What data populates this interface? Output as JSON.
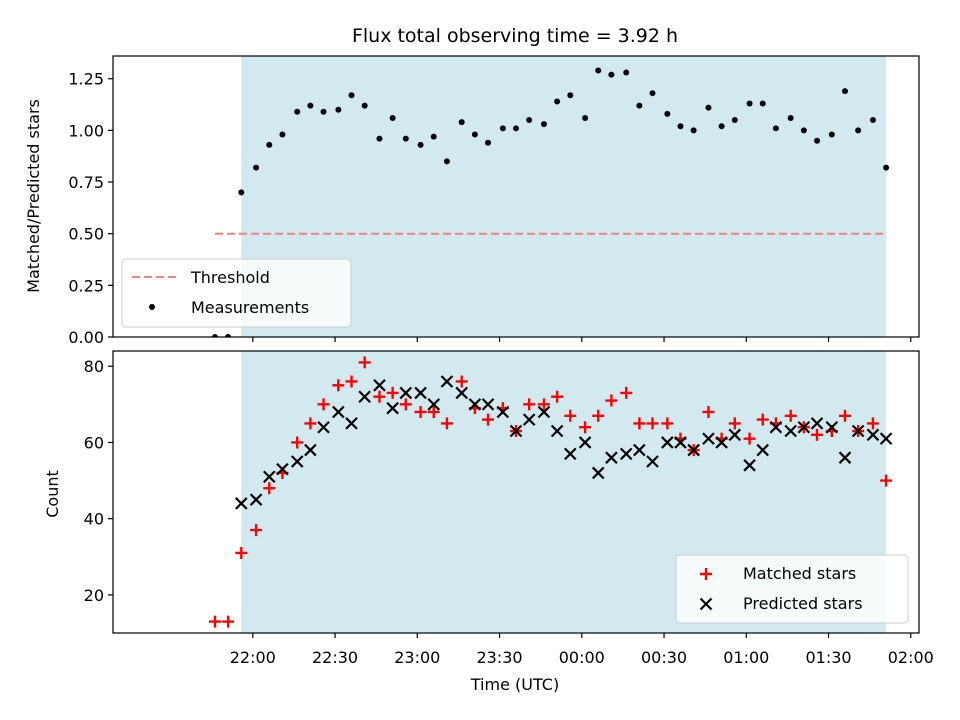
{
  "chart_data": [
    {
      "type": "scatter",
      "title": "Flux total observing time = 3.92 h",
      "xlabel": "",
      "ylabel": "Matched/Predicted stars",
      "x_unit": "hours since 22:00 UTC",
      "xlim": [
        -0.85,
        4.05
      ],
      "ylim": [
        0.0,
        1.36
      ],
      "yticks": [
        0.0,
        0.25,
        0.5,
        0.75,
        1.0,
        1.25
      ],
      "ytick_labels": [
        "0.00",
        "0.25",
        "0.50",
        "0.75",
        "1.00",
        "1.25"
      ],
      "xticks": [
        0,
        0.5,
        1,
        1.5,
        2,
        2.5,
        3,
        3.5,
        4
      ],
      "shaded_span": [
        -0.07,
        3.85
      ],
      "shaded_color": "#d3e9f0",
      "threshold": {
        "name": "Threshold",
        "y": 0.5,
        "x_range": [
          -0.23,
          3.85
        ],
        "color": "#f28080"
      },
      "legend": {
        "placement": "lower left",
        "entries": [
          "Threshold",
          "Measurements"
        ]
      },
      "series": [
        {
          "name": "Measurements",
          "color": "#000000",
          "points": [
            [
              -0.23,
              0.0
            ],
            [
              -0.15,
              0.0
            ],
            [
              -0.07,
              0.7
            ],
            [
              0.02,
              0.82
            ],
            [
              0.1,
              0.93
            ],
            [
              0.18,
              0.98
            ],
            [
              0.27,
              1.09
            ],
            [
              0.35,
              1.12
            ],
            [
              0.43,
              1.09
            ],
            [
              0.52,
              1.1
            ],
            [
              0.6,
              1.17
            ],
            [
              0.68,
              1.12
            ],
            [
              0.77,
              0.96
            ],
            [
              0.85,
              1.06
            ],
            [
              0.93,
              0.96
            ],
            [
              1.02,
              0.93
            ],
            [
              1.1,
              0.97
            ],
            [
              1.18,
              0.85
            ],
            [
              1.27,
              1.04
            ],
            [
              1.35,
              0.98
            ],
            [
              1.43,
              0.94
            ],
            [
              1.52,
              1.01
            ],
            [
              1.6,
              1.01
            ],
            [
              1.68,
              1.05
            ],
            [
              1.77,
              1.03
            ],
            [
              1.85,
              1.14
            ],
            [
              1.93,
              1.17
            ],
            [
              2.02,
              1.06
            ],
            [
              2.1,
              1.29
            ],
            [
              2.18,
              1.27
            ],
            [
              2.27,
              1.28
            ],
            [
              2.35,
              1.12
            ],
            [
              2.43,
              1.18
            ],
            [
              2.52,
              1.08
            ],
            [
              2.6,
              1.02
            ],
            [
              2.68,
              1.0
            ],
            [
              2.77,
              1.11
            ],
            [
              2.85,
              1.02
            ],
            [
              2.93,
              1.05
            ],
            [
              3.02,
              1.13
            ],
            [
              3.1,
              1.13
            ],
            [
              3.18,
              1.01
            ],
            [
              3.27,
              1.06
            ],
            [
              3.35,
              1.0
            ],
            [
              3.43,
              0.95
            ],
            [
              3.52,
              0.98
            ],
            [
              3.6,
              1.19
            ],
            [
              3.68,
              1.0
            ],
            [
              3.77,
              1.05
            ],
            [
              3.85,
              0.82
            ]
          ]
        }
      ]
    },
    {
      "type": "scatter",
      "title": "",
      "xlabel": "Time (UTC)",
      "ylabel": "Count",
      "x_unit": "hours since 22:00 UTC",
      "xlim": [
        -0.85,
        4.05
      ],
      "ylim": [
        10,
        84
      ],
      "yticks": [
        20,
        40,
        60,
        80
      ],
      "ytick_labels": [
        "20",
        "40",
        "60",
        "80"
      ],
      "xticks": [
        0,
        0.5,
        1,
        1.5,
        2,
        2.5,
        3,
        3.5,
        4
      ],
      "xtick_labels": [
        "22:00",
        "22:30",
        "23:00",
        "23:30",
        "00:00",
        "00:30",
        "01:00",
        "01:30",
        "02:00"
      ],
      "shaded_span": [
        -0.07,
        3.85
      ],
      "shaded_color": "#d3e9f0",
      "legend": {
        "placement": "lower right",
        "entries": [
          "Matched stars",
          "Predicted stars"
        ]
      },
      "series": [
        {
          "name": "Matched stars",
          "marker": "plus",
          "color": "#ff0000",
          "points": [
            [
              -0.23,
              13
            ],
            [
              -0.15,
              13
            ],
            [
              -0.07,
              31
            ],
            [
              0.02,
              37
            ],
            [
              0.1,
              48
            ],
            [
              0.18,
              52
            ],
            [
              0.27,
              60
            ],
            [
              0.35,
              65
            ],
            [
              0.43,
              70
            ],
            [
              0.52,
              75
            ],
            [
              0.6,
              76
            ],
            [
              0.68,
              81
            ],
            [
              0.77,
              72
            ],
            [
              0.85,
              73
            ],
            [
              0.93,
              70
            ],
            [
              1.02,
              68
            ],
            [
              1.1,
              68
            ],
            [
              1.18,
              65
            ],
            [
              1.27,
              76
            ],
            [
              1.35,
              69
            ],
            [
              1.43,
              66
            ],
            [
              1.52,
              69
            ],
            [
              1.6,
              63
            ],
            [
              1.68,
              70
            ],
            [
              1.77,
              70
            ],
            [
              1.85,
              72
            ],
            [
              1.93,
              67
            ],
            [
              2.02,
              64
            ],
            [
              2.1,
              67
            ],
            [
              2.18,
              71
            ],
            [
              2.27,
              73
            ],
            [
              2.35,
              65
            ],
            [
              2.43,
              65
            ],
            [
              2.52,
              65
            ],
            [
              2.6,
              61
            ],
            [
              2.68,
              58
            ],
            [
              2.77,
              68
            ],
            [
              2.85,
              61
            ],
            [
              2.93,
              65
            ],
            [
              3.02,
              61
            ],
            [
              3.1,
              66
            ],
            [
              3.18,
              65
            ],
            [
              3.27,
              67
            ],
            [
              3.35,
              64
            ],
            [
              3.43,
              62
            ],
            [
              3.52,
              63
            ],
            [
              3.6,
              67
            ],
            [
              3.68,
              63
            ],
            [
              3.77,
              65
            ],
            [
              3.85,
              50
            ]
          ]
        },
        {
          "name": "Predicted stars",
          "marker": "x",
          "color": "#000000",
          "points": [
            [
              -0.07,
              44
            ],
            [
              0.02,
              45
            ],
            [
              0.1,
              51
            ],
            [
              0.18,
              53
            ],
            [
              0.27,
              55
            ],
            [
              0.35,
              58
            ],
            [
              0.43,
              64
            ],
            [
              0.52,
              68
            ],
            [
              0.6,
              65
            ],
            [
              0.68,
              72
            ],
            [
              0.77,
              75
            ],
            [
              0.85,
              69
            ],
            [
              0.93,
              73
            ],
            [
              1.02,
              73
            ],
            [
              1.1,
              70
            ],
            [
              1.18,
              76
            ],
            [
              1.27,
              73
            ],
            [
              1.35,
              70
            ],
            [
              1.43,
              70
            ],
            [
              1.52,
              68
            ],
            [
              1.6,
              63
            ],
            [
              1.68,
              66
            ],
            [
              1.77,
              68
            ],
            [
              1.85,
              63
            ],
            [
              1.93,
              57
            ],
            [
              2.02,
              60
            ],
            [
              2.1,
              52
            ],
            [
              2.18,
              56
            ],
            [
              2.27,
              57
            ],
            [
              2.35,
              58
            ],
            [
              2.43,
              55
            ],
            [
              2.52,
              60
            ],
            [
              2.6,
              60
            ],
            [
              2.68,
              58
            ],
            [
              2.77,
              61
            ],
            [
              2.85,
              60
            ],
            [
              2.93,
              62
            ],
            [
              3.02,
              54
            ],
            [
              3.1,
              58
            ],
            [
              3.18,
              64
            ],
            [
              3.27,
              63
            ],
            [
              3.35,
              64
            ],
            [
              3.43,
              65
            ],
            [
              3.52,
              64
            ],
            [
              3.6,
              56
            ],
            [
              3.68,
              63
            ],
            [
              3.77,
              62
            ],
            [
              3.85,
              61
            ]
          ]
        }
      ]
    }
  ]
}
